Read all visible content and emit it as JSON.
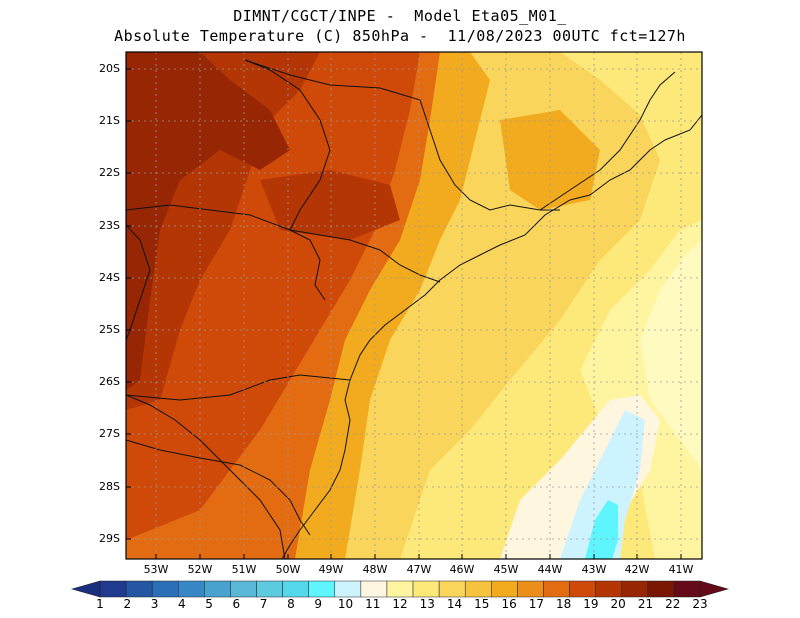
{
  "title": {
    "line1": "DIMNT/CGCT/INPE -  Model Eta05_M01_",
    "line2": "Absolute Temperature (C) 850hPa -  11/08/2023 00UTC fct=127h"
  },
  "map": {
    "lat_labels": [
      "20S",
      "21S",
      "22S",
      "23S",
      "24S",
      "25S",
      "26S",
      "27S",
      "28S",
      "29S"
    ],
    "lon_labels": [
      "53W",
      "52W",
      "51W",
      "50W",
      "49W",
      "48W",
      "47W",
      "46W",
      "45W",
      "44W",
      "43W",
      "42W",
      "41W"
    ]
  },
  "colorbar": {
    "labels": [
      "1",
      "2",
      "3",
      "4",
      "5",
      "6",
      "7",
      "8",
      "9",
      "10",
      "11",
      "12",
      "13",
      "14",
      "15",
      "16",
      "17",
      "18",
      "19",
      "20",
      "21",
      "22",
      "23"
    ],
    "colors": [
      "#1f3a8f",
      "#2456a3",
      "#2b6fb8",
      "#3788c4",
      "#4aa2cf",
      "#58b8d6",
      "#5ccbe0",
      "#54d9ea",
      "#5ff5ff",
      "#cdf3ff",
      "#fff6e0",
      "#fff5a0",
      "#fde87a",
      "#fad55c",
      "#f6c33e",
      "#f2ab1f",
      "#eb8f1a",
      "#e36c12",
      "#cf4a08",
      "#b43605",
      "#962604",
      "#7a1703",
      "#650a18"
    ],
    "end_left": "#1a2f80",
    "end_right": "#650a18"
  }
}
